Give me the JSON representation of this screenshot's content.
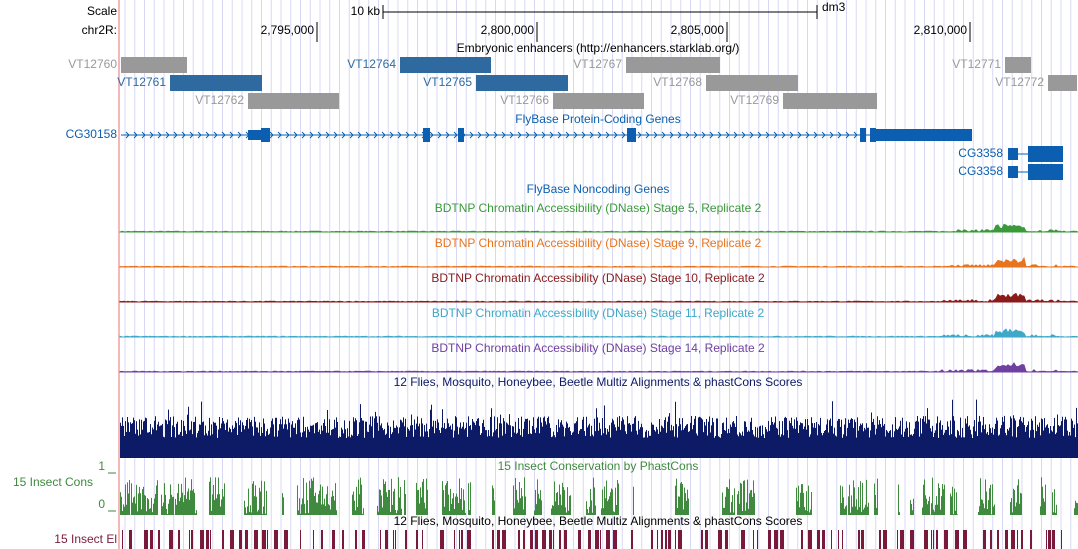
{
  "scale": {
    "label": "Scale",
    "size": "10 kb",
    "assembly": "dm3"
  },
  "position": {
    "chromosome": "chr2R:",
    "ticks": [
      "2,795,000",
      "2,800,000",
      "2,805,000",
      "2,810,000"
    ]
  },
  "enhancers": {
    "title": "Embryonic enhancers (http://enhancers.starklab.org/)",
    "items": [
      {
        "name": "VT12760",
        "color": "#999999"
      },
      {
        "name": "VT12764",
        "color": "#2e6aa0"
      },
      {
        "name": "VT12767",
        "color": "#999999"
      },
      {
        "name": "VT12771",
        "color": "#999999"
      },
      {
        "name": "VT12761",
        "color": "#2e6aa0"
      },
      {
        "name": "VT12765",
        "color": "#2e6aa0"
      },
      {
        "name": "VT12768",
        "color": "#999999"
      },
      {
        "name": "VT12772",
        "color": "#999999"
      },
      {
        "name": "VT12762",
        "color": "#999999"
      },
      {
        "name": "VT12766",
        "color": "#999999"
      },
      {
        "name": "VT12769",
        "color": "#999999"
      }
    ]
  },
  "genes": {
    "title": "FlyBase Protein-Coding Genes",
    "color": "#0c5fb0",
    "items": [
      {
        "name": "CG30158"
      },
      {
        "name": "CG3358"
      },
      {
        "name": "CG3358"
      }
    ]
  },
  "noncoding": {
    "title": "FlyBase Noncoding Genes"
  },
  "dnase_tracks": [
    {
      "title": "BDTNP Chromatin Accessibility (DNase) Stage 5, Replicate 2",
      "color": "#3a9a3a"
    },
    {
      "title": "BDTNP Chromatin Accessibility (DNase) Stage 9, Replicate 2",
      "color": "#e8741e"
    },
    {
      "title": "BDTNP Chromatin Accessibility (DNase) Stage 10, Replicate 2",
      "color": "#8b1a1a"
    },
    {
      "title": "BDTNP Chromatin Accessibility (DNase) Stage 11, Replicate 2",
      "color": "#3ea8c8"
    },
    {
      "title": "BDTNP Chromatin Accessibility (DNase) Stage 14, Replicate 2",
      "color": "#7040a0"
    }
  ],
  "multiz": {
    "title": "12 Flies, Mosquito, Honeybee, Beetle Multiz Alignments & phastCons Scores",
    "color": "#0d1a66"
  },
  "phastcons": {
    "label": "15 Insect Cons",
    "title": "15 Insect Conservation by PhastCons",
    "axis": [
      "1",
      "0"
    ],
    "color": "#3f8a3f"
  },
  "elements": {
    "label": "15 Insect El",
    "title": "12 Flies, Mosquito, Honeybee, Beetle Multiz Alignments & phastCons Scores",
    "color": "#7a1a3a"
  }
}
